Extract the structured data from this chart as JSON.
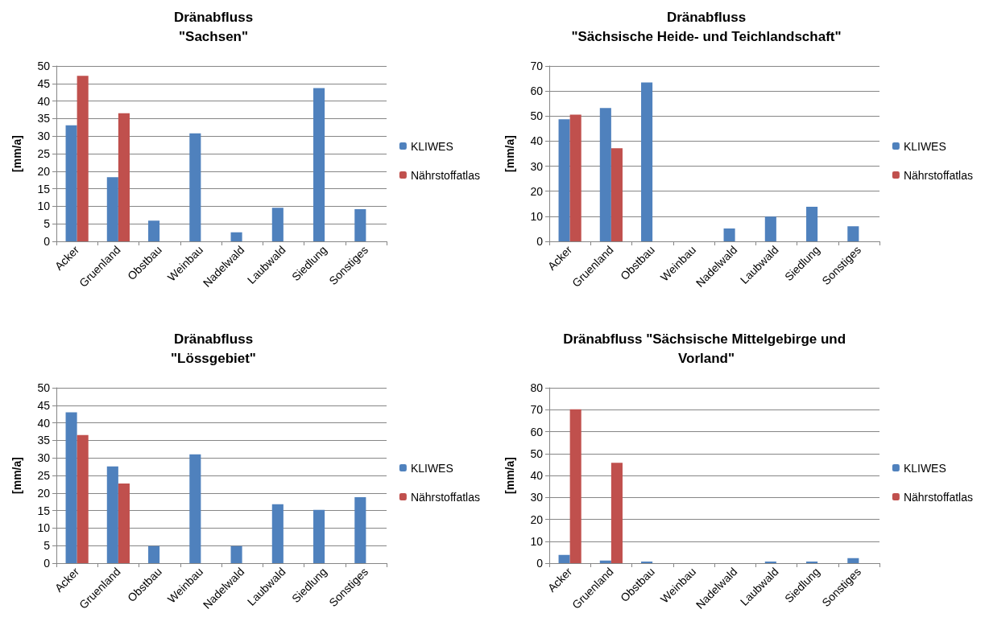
{
  "chart_data": [
    {
      "type": "bar",
      "title": "Dränabfluss\n\"Sachsen\"",
      "ylabel": "[mm/a]",
      "categories": [
        "Acker",
        "Gruenland",
        "Obstbau",
        "Weinbau",
        "Nadelwald",
        "Laubwald",
        "Siedlung",
        "Sonstiges"
      ],
      "series": [
        {
          "name": "KLIWES",
          "color": "#4f81bd",
          "values": [
            33.1,
            18.3,
            5.9,
            30.8,
            2.6,
            9.6,
            43.7,
            9.2
          ]
        },
        {
          "name": "Nährstoffatlas",
          "color": "#c0504d",
          "values": [
            47.2,
            36.5,
            null,
            null,
            null,
            null,
            null,
            null
          ]
        }
      ],
      "ylim": [
        0,
        50
      ],
      "yticks": [
        0,
        5,
        10,
        15,
        20,
        25,
        30,
        35,
        40,
        45,
        50
      ],
      "grid": "y",
      "legend": "right"
    },
    {
      "type": "bar",
      "title": "Dränabfluss\n\"Sächsische Heide- und Teichlandschaft\"",
      "ylabel": "[mm/a]",
      "categories": [
        "Acker",
        "Gruenland",
        "Obstbau",
        "Weinbau",
        "Nadelwald",
        "Laubwald",
        "Siedlung",
        "Sonstiges"
      ],
      "series": [
        {
          "name": "KLIWES",
          "color": "#4f81bd",
          "values": [
            48.7,
            53.2,
            63.4,
            null,
            5.1,
            9.9,
            13.8,
            6.0
          ]
        },
        {
          "name": "Nährstoffatlas",
          "color": "#c0504d",
          "values": [
            50.6,
            37.2,
            null,
            null,
            null,
            null,
            null,
            null
          ]
        }
      ],
      "ylim": [
        0,
        70
      ],
      "yticks": [
        0,
        10,
        20,
        30,
        40,
        50,
        60,
        70
      ],
      "grid": "y",
      "legend": "right"
    },
    {
      "type": "bar",
      "title": "Dränabfluss\n\"Lössgebiet\"",
      "ylabel": "[mm/a]",
      "categories": [
        "Acker",
        "Gruenland",
        "Obstbau",
        "Weinbau",
        "Nadelwald",
        "Laubwald",
        "Siedlung",
        "Sonstiges"
      ],
      "series": [
        {
          "name": "KLIWES",
          "color": "#4f81bd",
          "values": [
            43.0,
            27.6,
            4.9,
            31.0,
            4.9,
            16.8,
            15.2,
            18.8
          ]
        },
        {
          "name": "Nährstoffatlas",
          "color": "#c0504d",
          "values": [
            36.5,
            22.7,
            null,
            null,
            null,
            null,
            null,
            null
          ]
        }
      ],
      "ylim": [
        0,
        50
      ],
      "yticks": [
        0,
        5,
        10,
        15,
        20,
        25,
        30,
        35,
        40,
        45,
        50
      ],
      "grid": "y",
      "legend": "right"
    },
    {
      "type": "bar",
      "title": "Dränabfluss \"Sächsische Mittelgebirge und Vorland\"",
      "ylabel": "[mm/a]",
      "categories": [
        "Acker",
        "Gruenland",
        "Obstbau",
        "Weinbau",
        "Nadelwald",
        "Laubwald",
        "Siedlung",
        "Sonstiges"
      ],
      "series": [
        {
          "name": "KLIWES",
          "color": "#4f81bd",
          "values": [
            3.8,
            1.2,
            0.7,
            null,
            null,
            0.7,
            0.7,
            2.3
          ]
        },
        {
          "name": "Nährstoffatlas",
          "color": "#c0504d",
          "values": [
            70.2,
            45.8,
            null,
            null,
            null,
            null,
            null,
            null
          ]
        }
      ],
      "ylim": [
        0,
        80
      ],
      "yticks": [
        0,
        10,
        20,
        30,
        40,
        50,
        60,
        70,
        80
      ],
      "grid": "y",
      "legend": "right"
    }
  ]
}
